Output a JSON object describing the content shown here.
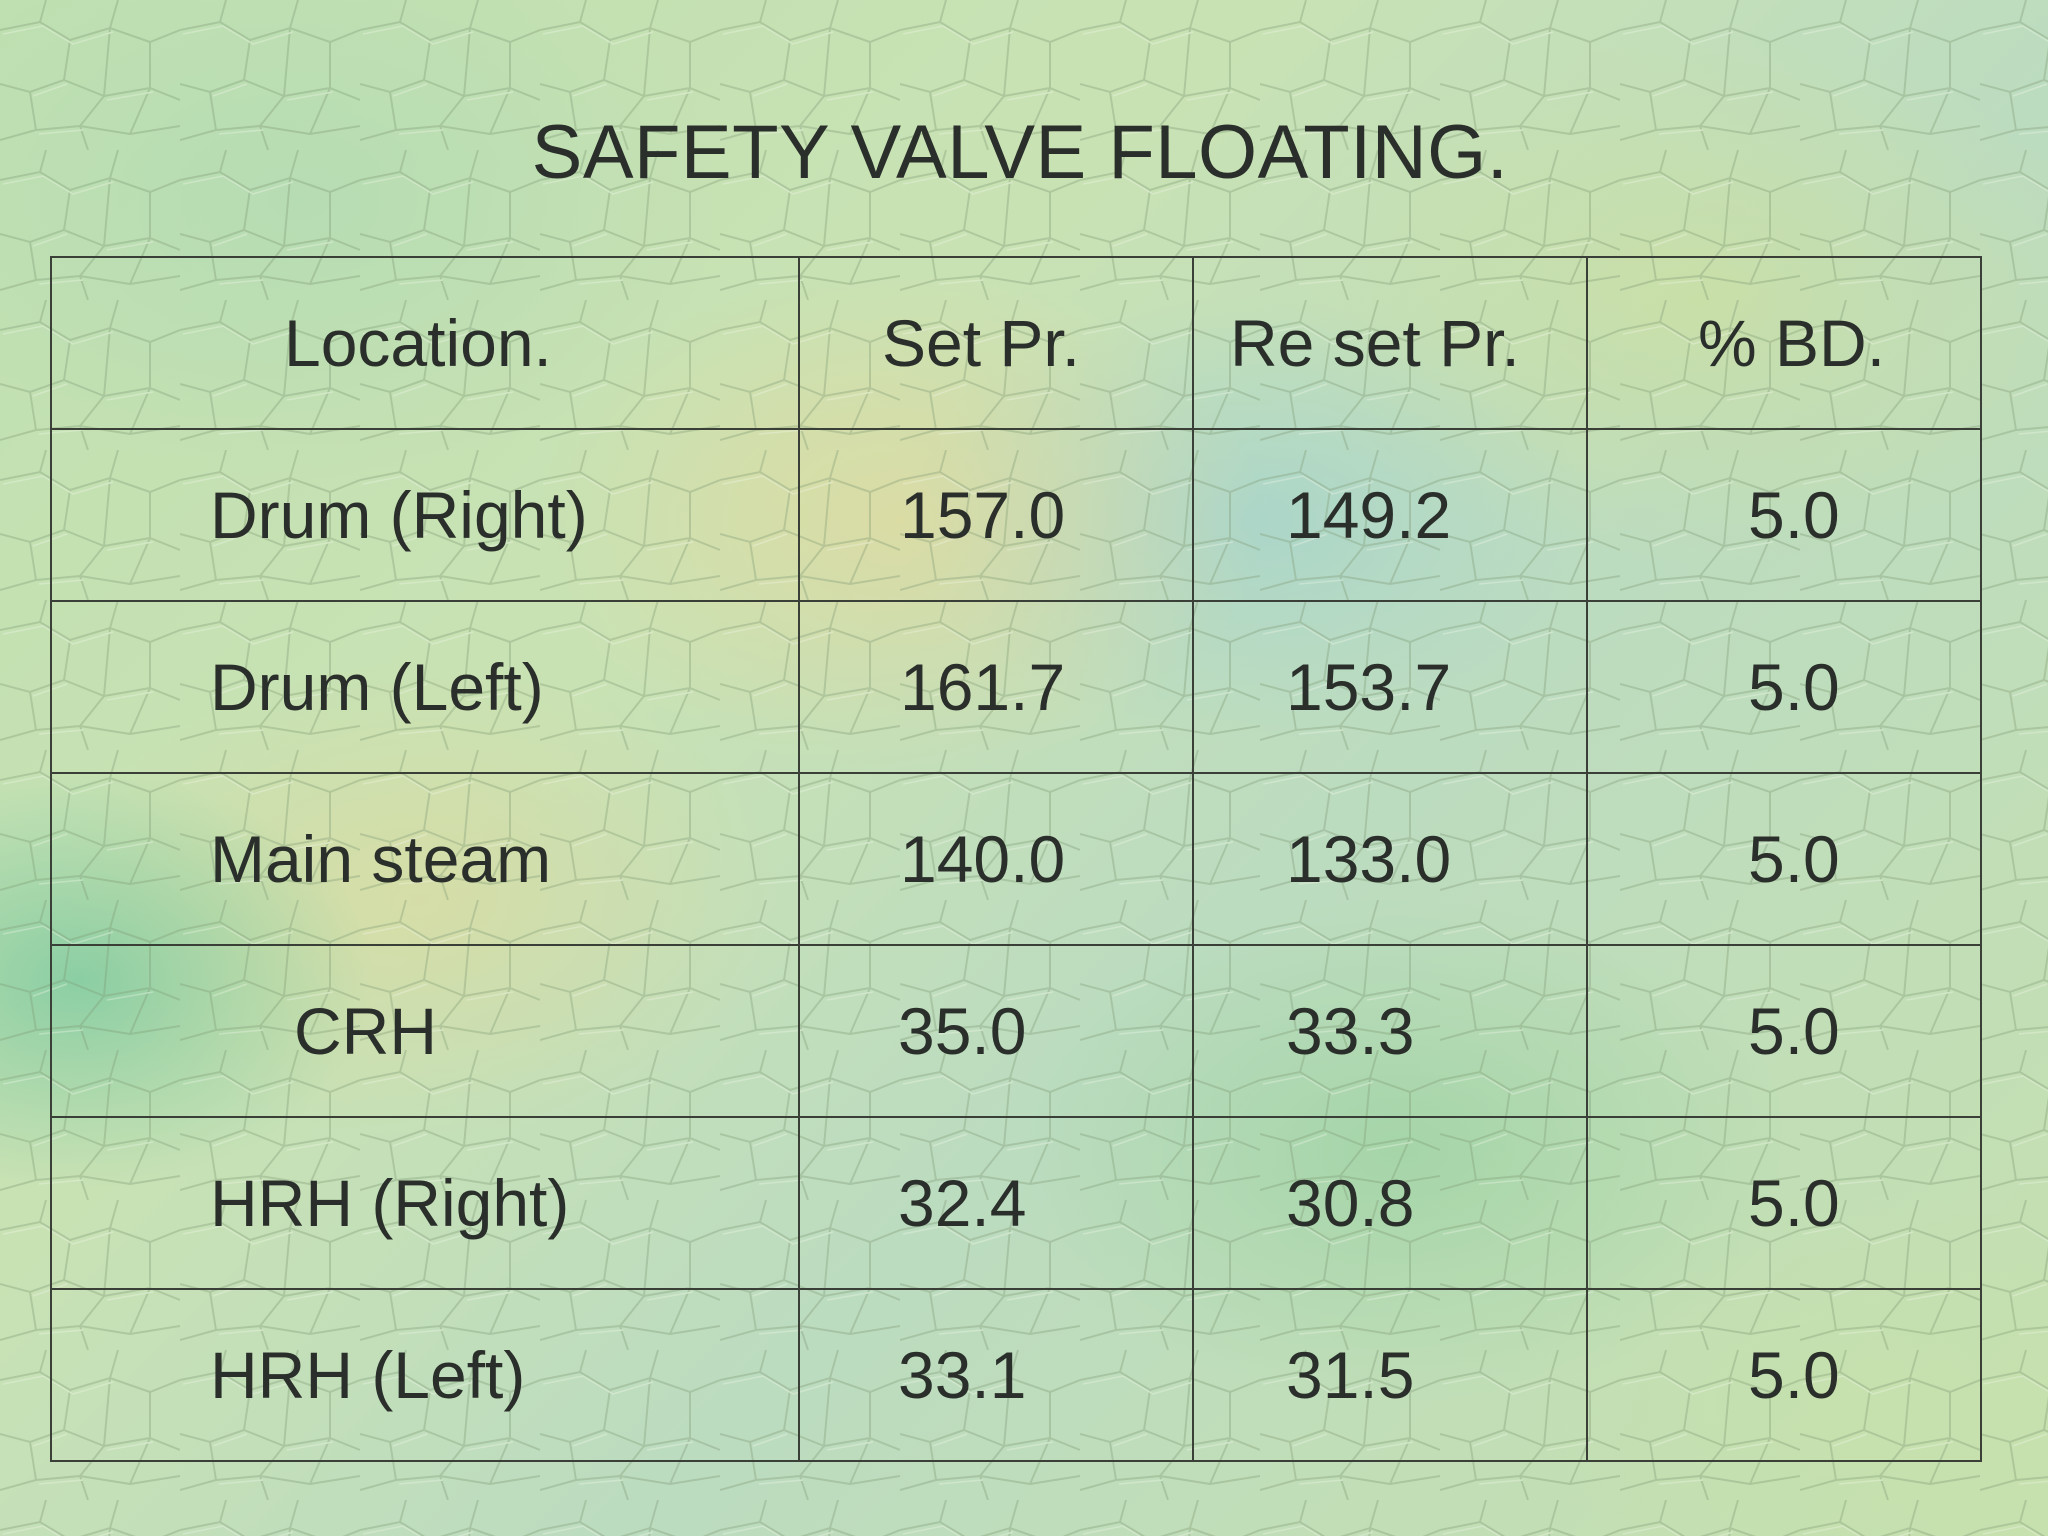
{
  "slide": {
    "title": "SAFETY VALVE FLOATING."
  },
  "table": {
    "headers": [
      "Location.",
      "Set Pr.",
      "Re set Pr.",
      "% BD."
    ],
    "rows": [
      {
        "location": "Drum (Right)",
        "set_pr": "157.0",
        "reset_pr": "149.2",
        "bd": "5.0"
      },
      {
        "location": "Drum (Left)",
        "set_pr": "161.7",
        "reset_pr": "153.7",
        "bd": "5.0"
      },
      {
        "location": "Main steam",
        "set_pr": "140.0",
        "reset_pr": "133.0",
        "bd": "5.0"
      },
      {
        "location": "CRH",
        "set_pr": "35.0",
        "reset_pr": "33.3",
        "bd": "5.0"
      },
      {
        "location": "HRH (Right)",
        "set_pr": "32.4",
        "reset_pr": "30.8",
        "bd": "5.0"
      },
      {
        "location": "HRH (Left)",
        "set_pr": "33.1",
        "reset_pr": "31.5",
        "bd": "5.0"
      }
    ]
  }
}
